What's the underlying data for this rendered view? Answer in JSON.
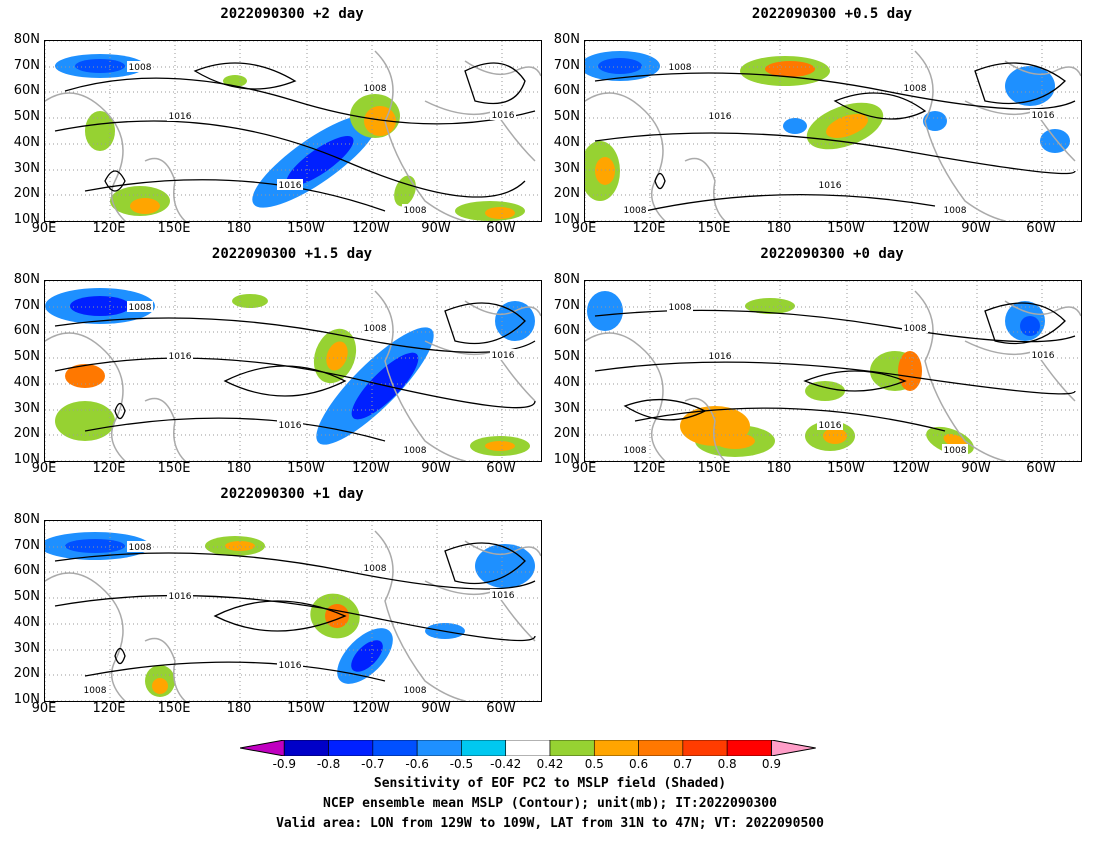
{
  "panels": [
    {
      "id": "p1",
      "title": "2022090300 +2 day"
    },
    {
      "id": "p2",
      "title": "2022090300 +0.5 day"
    },
    {
      "id": "p3",
      "title": "2022090300 +1.5 day"
    },
    {
      "id": "p4",
      "title": "2022090300 +0 day"
    },
    {
      "id": "p5",
      "title": "2022090300 +1 day"
    }
  ],
  "axes": {
    "lat_labels": [
      "80N",
      "70N",
      "60N",
      "50N",
      "40N",
      "30N",
      "20N",
      "10N"
    ],
    "lon_labels": [
      "90E",
      "120E",
      "150E",
      "180",
      "150W",
      "120W",
      "90W",
      "60W"
    ]
  },
  "contour_labels": {
    "p1": [
      "1008",
      "1008",
      "1016",
      "1016",
      "1016",
      "1008"
    ],
    "p2": [
      "1008",
      "1008",
      "1016",
      "1016",
      "1016",
      "1008",
      "1008"
    ],
    "p3": [
      "1008",
      "1008",
      "1016",
      "1016",
      "1016",
      "1008"
    ],
    "p4": [
      "1008",
      "1008",
      "1016",
      "1016",
      "1016",
      "1008",
      "1008"
    ],
    "p5": [
      "1008",
      "1008",
      "1016",
      "1016",
      "1016",
      "1008",
      "1008"
    ]
  },
  "colorbar": {
    "labels": [
      "-0.9",
      "-0.8",
      "-0.7",
      "-0.6",
      "-0.5",
      "-0.42",
      "0.42",
      "0.5",
      "0.6",
      "0.7",
      "0.8",
      "0.9"
    ],
    "colors": [
      "#c000c0",
      "#0000c8",
      "#0020ff",
      "#0050ff",
      "#1e90ff",
      "#00c8f0",
      "#ffffff",
      "#96d232",
      "#ffa500",
      "#ff7800",
      "#ff3c00",
      "#ff0000",
      "#ff9ec8"
    ]
  },
  "caption": {
    "line1": "Sensitivity of EOF PC2 to MSLP field (Shaded)",
    "line2": "NCEP ensemble mean MSLP (Contour); unit(mb); IT:2022090300",
    "line3": "Valid area: LON from 129W to 109W, LAT from 31N to 47N; VT: 2022090500"
  }
}
